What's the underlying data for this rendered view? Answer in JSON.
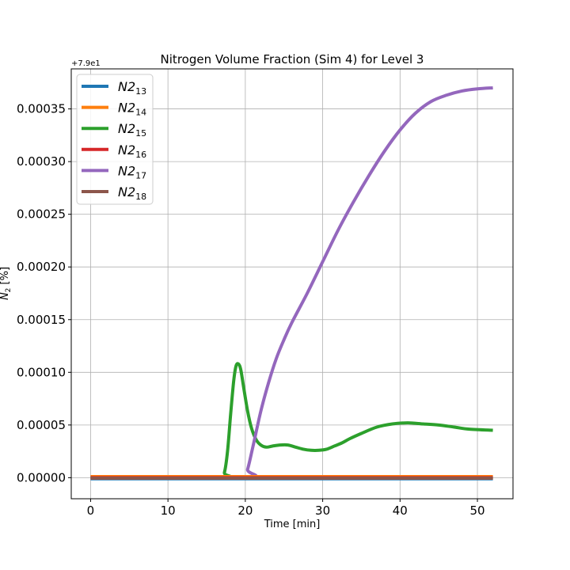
{
  "chart_data": {
    "type": "line",
    "title": "Nitrogen Volume Fraction (Sim 4) for Level 3",
    "xlabel": "Time [min]",
    "ylabel_base": "N",
    "ylabel_sub": "2",
    "ylabel_unit": " [%]",
    "offset_text": "+7.9e1",
    "xlim": [
      -2.5,
      54.6
    ],
    "ylim": [
      -2e-05,
      0.000388
    ],
    "xticks": [
      0,
      10,
      20,
      30,
      40,
      50
    ],
    "xtick_labels": [
      "0",
      "10",
      "20",
      "30",
      "40",
      "50"
    ],
    "yticks": [
      0,
      5e-05,
      0.0001,
      0.00015,
      0.0002,
      0.00025,
      0.0003,
      0.00035
    ],
    "ytick_labels": [
      "0.00000",
      "0.00005",
      "0.00010",
      "0.00015",
      "0.00020",
      "0.00025",
      "0.00030",
      "0.00035"
    ],
    "grid": true,
    "legend_position": "top-left",
    "series": [
      {
        "name_base": "N2",
        "name_sub": "13",
        "color": "#1f77b4",
        "x": [
          0,
          52
        ],
        "y": [
          -1e-06,
          -1e-06
        ]
      },
      {
        "name_base": "N2",
        "name_sub": "14",
        "color": "#ff7f0e",
        "x": [
          0,
          52
        ],
        "y": [
          1e-06,
          1e-06
        ]
      },
      {
        "name_base": "N2",
        "name_sub": "15",
        "color": "#2ca02c",
        "x": [
          0,
          16.8,
          17.3,
          17.7,
          18.1,
          18.5,
          18.8,
          19.1,
          19.4,
          19.8,
          20.3,
          20.8,
          21.4,
          22.0,
          22.7,
          23.5,
          24.5,
          25.5,
          26.5,
          27.5,
          28.5,
          29.5,
          30.5,
          31.5,
          32.5,
          33.5,
          35,
          37,
          39,
          41,
          43,
          45,
          47,
          49,
          52
        ],
        "y": [
          0,
          0,
          5e-06,
          2.5e-05,
          6e-05,
          9.2e-05,
          0.000106,
          0.000108,
          0.000103,
          8.5e-05,
          6.3e-05,
          4.7e-05,
          3.6e-05,
          3.1e-05,
          2.9e-05,
          3e-05,
          3.1e-05,
          3.1e-05,
          2.9e-05,
          2.7e-05,
          2.6e-05,
          2.6e-05,
          2.7e-05,
          3e-05,
          3.3e-05,
          3.7e-05,
          4.2e-05,
          4.8e-05,
          5.1e-05,
          5.2e-05,
          5.1e-05,
          5e-05,
          4.8e-05,
          4.6e-05,
          4.5e-05
        ]
      },
      {
        "name_base": "N2",
        "name_sub": "16",
        "color": "#d62728",
        "x": [
          0,
          52
        ],
        "y": [
          0,
          0
        ]
      },
      {
        "name_base": "N2",
        "name_sub": "17",
        "color": "#9467bd",
        "x": [
          0,
          19.8,
          20.3,
          21.0,
          22.0,
          23.0,
          24.0,
          25.0,
          26.0,
          28.0,
          30.0,
          32.0,
          34.0,
          36.0,
          38.0,
          40.0,
          42.0,
          44.0,
          46.0,
          48.0,
          50.0,
          52.0
        ],
        "y": [
          0,
          0,
          8e-06,
          3e-05,
          6.3e-05,
          9e-05,
          0.000113,
          0.000131,
          0.000147,
          0.000175,
          0.000205,
          0.000235,
          0.000262,
          0.000287,
          0.00031,
          0.00033,
          0.000346,
          0.000357,
          0.000363,
          0.000367,
          0.000369,
          0.00037
        ]
      },
      {
        "name_base": "N2",
        "name_sub": "18",
        "color": "#8c564b",
        "x": [
          0,
          52
        ],
        "y": [
          -5e-07,
          -5e-07
        ]
      }
    ]
  }
}
